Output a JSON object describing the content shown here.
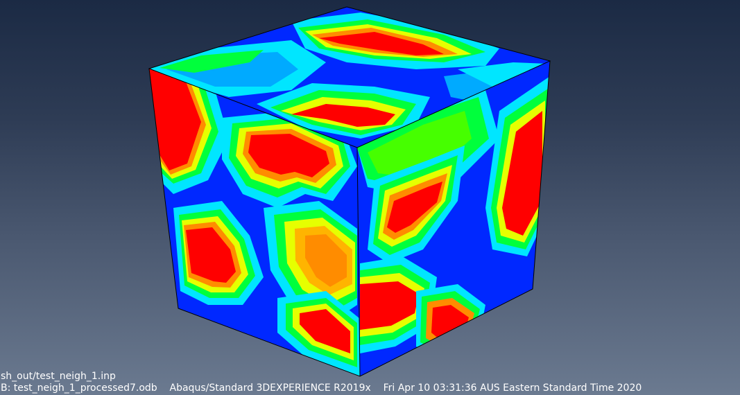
{
  "viewport": {
    "colors": {
      "red": "#ff0000",
      "orange": "#ff8c00",
      "amber": "#ffb400",
      "yellow": "#e6ff00",
      "green": "#00ff3c",
      "lime": "#46ff00",
      "cyan": "#00e6ff",
      "sky": "#00aaff",
      "blue": "#0028ff",
      "edge": "#000000"
    }
  },
  "status": {
    "input_path": "sh_out/test_neigh_1.inp",
    "odb_name": "B: test_neigh_1_processed7.odb",
    "solver": "Abaqus/Standard 3DEXPERIENCE R2019x",
    "timestamp": "Fri Apr 10 03:31:36 AUS Eastern Standard Time 2020"
  }
}
